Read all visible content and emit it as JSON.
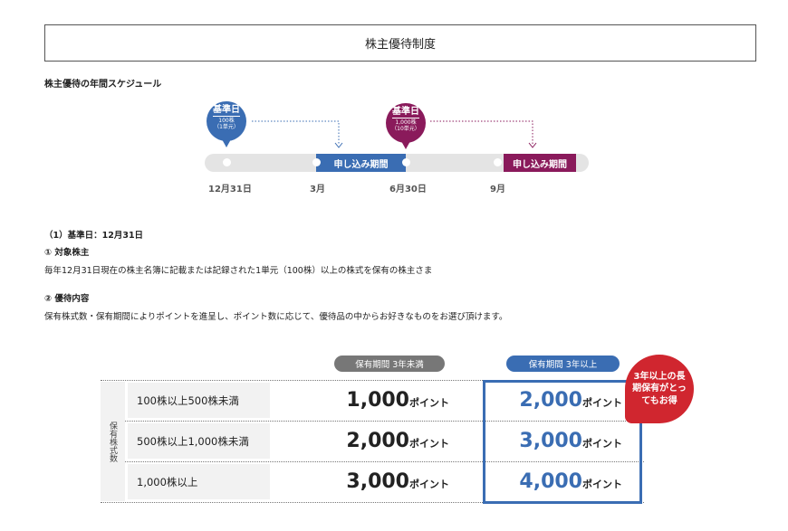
{
  "title": "株主優待制度",
  "schedule": {
    "heading": "株主優待の年間スケジュール",
    "marker1": {
      "label": "基準日",
      "shares": "100株",
      "unit": "（1単元）",
      "color": "#3a6db3"
    },
    "marker2": {
      "label": "基準日",
      "shares": "1,000株",
      "unit": "（10単元）",
      "color": "#8a1a5b"
    },
    "period_label": "申し込み期間",
    "months": [
      "12月31日",
      "3月",
      "6月30日",
      "9月"
    ]
  },
  "section": {
    "heading": "（1）基準日：12月31日",
    "item1_title": "① 対象株主",
    "item1_text": "毎年12月31日現在の株主名簿に記載または記録された1単元（100株）以上の株式を保有の株主さま",
    "item2_title": "② 優待内容",
    "item2_text": "保有株式数・保有期間によりポイントを進呈し、ポイント数に応じて、優待品の中からお好きなものをお選び頂けます。"
  },
  "table": {
    "col1": "保有期間 3年未満",
    "col2": "保有期間 3年以上",
    "row_header": "保有株式数",
    "unit": "ポイント",
    "rows": [
      {
        "label": "100株以上500株未満",
        "v1": "1,000",
        "v2": "2,000"
      },
      {
        "label": "500株以上1,000株未満",
        "v1": "2,000",
        "v2": "3,000"
      },
      {
        "label": "1,000株以上",
        "v1": "3,000",
        "v2": "4,000"
      }
    ],
    "badge": "3年以上の長期保有がとってもお得",
    "accent": "#3a6db3",
    "badge_color": "#d0262f"
  }
}
